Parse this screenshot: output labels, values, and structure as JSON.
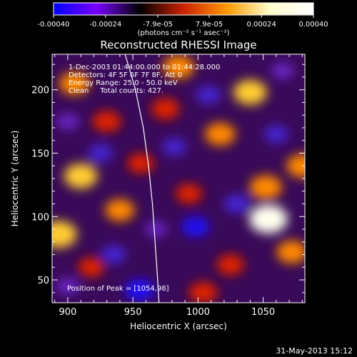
{
  "chart_data": {
    "type": "heatmap",
    "title": "Reconstructed RHESSI Image",
    "xlabel": "Heliocentric X (arcsec)",
    "ylabel": "Heliocentric Y (arcsec)",
    "xlim": [
      888,
      1082
    ],
    "ylim": [
      32,
      228
    ],
    "x_ticks": [
      900,
      950,
      1000,
      1050
    ],
    "y_ticks": [
      50,
      100,
      150,
      200
    ],
    "colorbar": {
      "ticks": [
        {
          "value": -0.0004,
          "label": "-0.00040"
        },
        {
          "value": -0.00024,
          "label": "-0.00024"
        },
        {
          "value": -7.9e-05,
          "label": "-7.9e-05"
        },
        {
          "value": 7.9e-05,
          "label": "7.9e-05"
        },
        {
          "value": 0.00024,
          "label": "0.00024"
        },
        {
          "value": 0.0004,
          "label": "0.00040"
        }
      ],
      "range": [
        -0.0004,
        0.0004
      ],
      "unit": "(photons cm⁻² s⁻¹ asec⁻²)",
      "colors": [
        "#0000ff",
        "#7a00ff",
        "#000000",
        "#cc2200",
        "#ff9900",
        "#ffffcc",
        "#ffffff"
      ]
    },
    "annotations": [
      "1-Dec-2003 01:44:00.000 to 01:44:28.000",
      "Detectors: 4F 5F 6F 7F 8F, Att 0",
      "Energy Range: 25.0 - 50.0 keV",
      "Clean     Total counts: 427."
    ],
    "peak_label": "Position of Peak = [1054,98]",
    "peak": {
      "x": 1054,
      "y": 98
    },
    "limb": [
      [
        944,
        228
      ],
      [
        952,
        200
      ],
      [
        958,
        170
      ],
      [
        962,
        140
      ],
      [
        965,
        110
      ],
      [
        967,
        80
      ],
      [
        969,
        50
      ],
      [
        970,
        32
      ]
    ],
    "blobs": [
      {
        "x": 905,
        "y": 205,
        "v": 0.00024
      },
      {
        "x": 930,
        "y": 175,
        "v": 0.0002
      },
      {
        "x": 910,
        "y": 132,
        "v": 0.0003
      },
      {
        "x": 893,
        "y": 86,
        "v": 0.00036
      },
      {
        "x": 918,
        "y": 60,
        "v": 0.00015
      },
      {
        "x": 940,
        "y": 105,
        "v": 0.00022
      },
      {
        "x": 956,
        "y": 142,
        "v": 0.00016
      },
      {
        "x": 975,
        "y": 185,
        "v": 0.0002
      },
      {
        "x": 985,
        "y": 218,
        "v": 0.00026
      },
      {
        "x": 1017,
        "y": 165,
        "v": 0.00024
      },
      {
        "x": 1040,
        "y": 198,
        "v": 0.0003
      },
      {
        "x": 1052,
        "y": 123,
        "v": 0.00028
      },
      {
        "x": 1054,
        "y": 98,
        "v": 0.0004
      },
      {
        "x": 1072,
        "y": 72,
        "v": 0.00024
      },
      {
        "x": 1025,
        "y": 62,
        "v": 0.00018
      },
      {
        "x": 993,
        "y": 118,
        "v": 0.00016
      },
      {
        "x": 1004,
        "y": 40,
        "v": 0.0002
      },
      {
        "x": 1080,
        "y": 140,
        "v": 0.00026
      },
      {
        "x": 900,
        "y": 175,
        "v": -0.00012
      },
      {
        "x": 925,
        "y": 150,
        "v": -0.00015
      },
      {
        "x": 935,
        "y": 70,
        "v": -0.00016
      },
      {
        "x": 955,
        "y": 42,
        "v": -0.00026
      },
      {
        "x": 982,
        "y": 155,
        "v": -0.00014
      },
      {
        "x": 998,
        "y": 92,
        "v": -0.00022
      },
      {
        "x": 1030,
        "y": 110,
        "v": -0.00018
      },
      {
        "x": 1060,
        "y": 165,
        "v": -0.00014
      },
      {
        "x": 1008,
        "y": 196,
        "v": -0.00015
      },
      {
        "x": 1065,
        "y": 215,
        "v": -0.00012
      },
      {
        "x": 968,
        "y": 90,
        "v": -0.0001
      },
      {
        "x": 900,
        "y": 45,
        "v": -0.00012
      }
    ]
  },
  "footer": {
    "timestamp": "31-May-2013 15:12"
  }
}
